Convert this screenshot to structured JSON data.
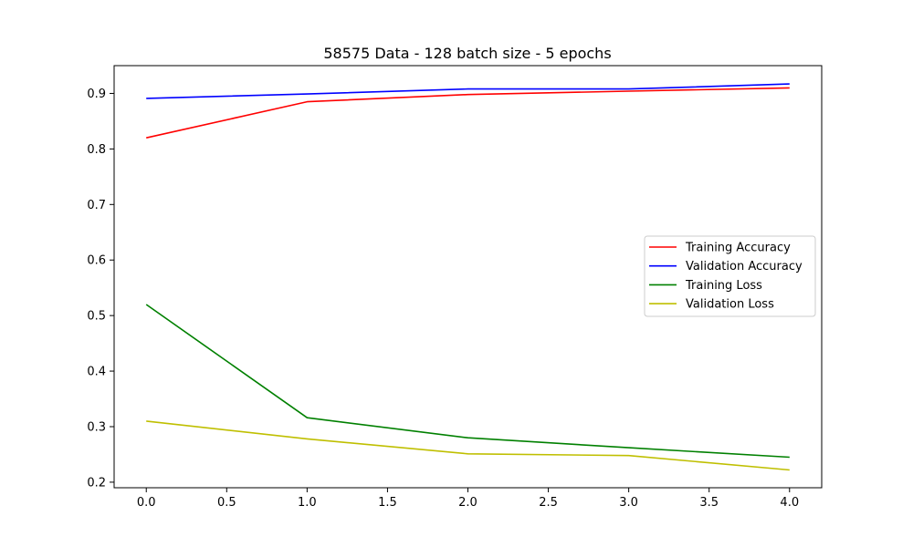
{
  "chart_data": {
    "type": "line",
    "title": "58575 Data - 128 batch size - 5 epochs",
    "xlabel": "",
    "ylabel": "",
    "x": [
      0,
      1,
      2,
      3,
      4
    ],
    "xlim": [
      -0.2,
      4.2
    ],
    "ylim": [
      0.19,
      0.95
    ],
    "xticks": [
      0.0,
      0.5,
      1.0,
      1.5,
      2.0,
      2.5,
      3.0,
      3.5,
      4.0
    ],
    "xtick_labels": [
      "0.0",
      "0.5",
      "1.0",
      "1.5",
      "2.0",
      "2.5",
      "3.0",
      "3.5",
      "4.0"
    ],
    "yticks": [
      0.2,
      0.3,
      0.4,
      0.5,
      0.6,
      0.7,
      0.8,
      0.9
    ],
    "ytick_labels": [
      "0.2",
      "0.3",
      "0.4",
      "0.5",
      "0.6",
      "0.7",
      "0.8",
      "0.9"
    ],
    "grid": false,
    "legend_position": "center-right",
    "series": [
      {
        "name": "Training Accuracy",
        "color": "#ff0000",
        "values": [
          0.82,
          0.885,
          0.898,
          0.904,
          0.91
        ]
      },
      {
        "name": "Validation Accuracy",
        "color": "#0000ff",
        "values": [
          0.891,
          0.899,
          0.908,
          0.908,
          0.917
        ]
      },
      {
        "name": "Training Loss",
        "color": "#008000",
        "values": [
          0.52,
          0.316,
          0.28,
          0.262,
          0.245
        ]
      },
      {
        "name": "Validation Loss",
        "color": "#bfbf00",
        "values": [
          0.31,
          0.278,
          0.251,
          0.248,
          0.222
        ]
      }
    ]
  }
}
